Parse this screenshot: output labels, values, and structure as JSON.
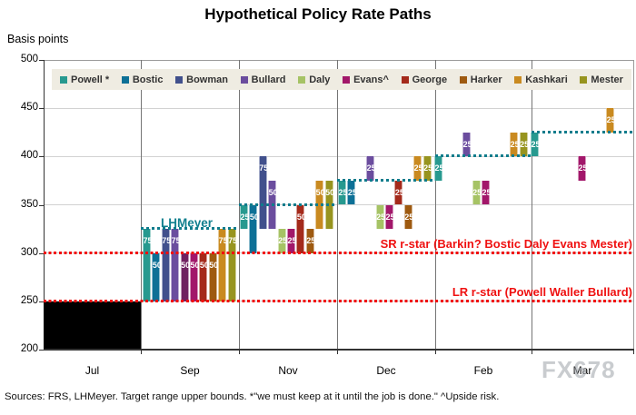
{
  "title": "Hypothetical Policy Rate Paths",
  "watermark": "FX678",
  "footer": "Sources: FRS, LHMeyer.  Target range upper bounds.  *\"we must keep at it until the job is done.\" ^Upside risk.",
  "y_axis": {
    "label": "Basis points",
    "ticks": [
      500,
      450,
      400,
      350,
      300,
      250,
      200
    ]
  },
  "chart_data": {
    "type": "bar",
    "subtype": "cumulative-rate-path-waterfall",
    "title": "Hypothetical Policy Rate Paths",
    "ylabel": "Basis points",
    "ylim": [
      200,
      500
    ],
    "grid": "both",
    "legend_position": "top-inside",
    "categories": [
      "Jul",
      "Sep",
      "Nov",
      "Dec",
      "Feb",
      "Mar"
    ],
    "members": [
      {
        "name": "Powell",
        "legend_label": "Powell *",
        "color": "#27998f"
      },
      {
        "name": "Bostic",
        "legend_label": "Bostic",
        "color": "#0d7096"
      },
      {
        "name": "Bowman",
        "legend_label": "Bowman",
        "color": "#41508c"
      },
      {
        "name": "Bullard",
        "legend_label": "Bullard",
        "color": "#6b4d9e"
      },
      {
        "name": "Daly",
        "legend_label": "Daly",
        "color": "#a6c365"
      },
      {
        "name": "Evans",
        "legend_label": "Evans^",
        "color": "#a2176a"
      },
      {
        "name": "George",
        "legend_label": "George",
        "color": "#a42a1b"
      },
      {
        "name": "Harker",
        "legend_label": "Harker",
        "color": "#9e5a10"
      },
      {
        "name": "Kashkari",
        "legend_label": "Kashkari",
        "color": "#c98a20"
      },
      {
        "name": "Mester",
        "legend_label": "Mester",
        "color": "#97941f"
      }
    ],
    "jul_range_box": {
      "month": "Jul",
      "from": 200,
      "to": 250,
      "color": "#000000"
    },
    "bars": [
      {
        "month": "Sep",
        "member": "Powell",
        "from": 250,
        "to": 325,
        "label": "75"
      },
      {
        "month": "Sep",
        "member": "Bostic",
        "from": 250,
        "to": 300,
        "label": "50"
      },
      {
        "month": "Sep",
        "member": "Bowman",
        "from": 250,
        "to": 325,
        "label": "75"
      },
      {
        "month": "Sep",
        "member": "Bullard",
        "from": 250,
        "to": 325,
        "label": "75"
      },
      {
        "month": "Sep",
        "member": "Daly",
        "from": 250,
        "to": 300,
        "label": "50",
        "color": "#6f2160"
      },
      {
        "month": "Sep",
        "member": "Evans",
        "from": 250,
        "to": 300,
        "label": "50"
      },
      {
        "month": "Sep",
        "member": "George",
        "from": 250,
        "to": 300,
        "label": "50"
      },
      {
        "month": "Sep",
        "member": "Harker",
        "from": 250,
        "to": 300,
        "label": "50"
      },
      {
        "month": "Sep",
        "member": "Kashkari",
        "from": 250,
        "to": 325,
        "label": "75"
      },
      {
        "month": "Sep",
        "member": "Mester",
        "from": 250,
        "to": 325,
        "label": "75"
      },
      {
        "month": "Nov",
        "member": "Powell",
        "from": 325,
        "to": 350,
        "label": "25"
      },
      {
        "month": "Nov",
        "member": "Bostic",
        "from": 300,
        "to": 350,
        "label": "50"
      },
      {
        "month": "Nov",
        "member": "Bowman",
        "from": 325,
        "to": 400,
        "label": "75"
      },
      {
        "month": "Nov",
        "member": "Bullard",
        "from": 325,
        "to": 375,
        "label": "50"
      },
      {
        "month": "Nov",
        "member": "Daly",
        "from": 300,
        "to": 325,
        "label": "25"
      },
      {
        "month": "Nov",
        "member": "Evans",
        "from": 300,
        "to": 325,
        "label": "25"
      },
      {
        "month": "Nov",
        "member": "George",
        "from": 300,
        "to": 350,
        "label": "50"
      },
      {
        "month": "Nov",
        "member": "Harker",
        "from": 300,
        "to": 325,
        "label": "25"
      },
      {
        "month": "Nov",
        "member": "Kashkari",
        "from": 325,
        "to": 375,
        "label": "50"
      },
      {
        "month": "Nov",
        "member": "Mester",
        "from": 325,
        "to": 375,
        "label": "50"
      },
      {
        "month": "Dec",
        "member": "Powell",
        "from": 350,
        "to": 375,
        "label": "25"
      },
      {
        "month": "Dec",
        "member": "Bostic",
        "from": 350,
        "to": 375,
        "label": "25"
      },
      {
        "month": "Dec",
        "member": "Bullard",
        "from": 375,
        "to": 400,
        "label": "25"
      },
      {
        "month": "Dec",
        "member": "Daly",
        "from": 325,
        "to": 350,
        "label": "25"
      },
      {
        "month": "Dec",
        "member": "Evans",
        "from": 325,
        "to": 350,
        "label": "25"
      },
      {
        "month": "Dec",
        "member": "George",
        "from": 350,
        "to": 375,
        "label": "25"
      },
      {
        "month": "Dec",
        "member": "Harker",
        "from": 325,
        "to": 350,
        "label": "25"
      },
      {
        "month": "Dec",
        "member": "Kashkari",
        "from": 375,
        "to": 400,
        "label": "25"
      },
      {
        "month": "Dec",
        "member": "Mester",
        "from": 375,
        "to": 400,
        "label": "25"
      },
      {
        "month": "Feb",
        "member": "Powell",
        "from": 375,
        "to": 400,
        "label": "25"
      },
      {
        "month": "Feb",
        "member": "Bullard",
        "from": 400,
        "to": 425,
        "label": "25"
      },
      {
        "month": "Feb",
        "member": "Daly",
        "from": 350,
        "to": 375,
        "label": "25"
      },
      {
        "month": "Feb",
        "member": "Evans",
        "from": 350,
        "to": 375,
        "label": "25"
      },
      {
        "month": "Feb",
        "member": "Kashkari",
        "from": 400,
        "to": 425,
        "label": "25"
      },
      {
        "month": "Feb",
        "member": "Mester",
        "from": 400,
        "to": 425,
        "label": "25"
      },
      {
        "month": "Mar",
        "member": "Powell",
        "from": 400,
        "to": 425,
        "label": "25"
      },
      {
        "month": "Mar",
        "member": "Evans",
        "from": 375,
        "to": 400,
        "label": "25"
      },
      {
        "month": "Mar",
        "member": "Kashkari",
        "from": 425,
        "to": 450,
        "label": "25"
      }
    ],
    "lhmeyer_path": {
      "label": "LHMeyer",
      "color": "#0f7c8c",
      "levels": [
        {
          "month": "Sep",
          "level": 325
        },
        {
          "month": "Nov",
          "level": 350
        },
        {
          "month": "Dec",
          "level": 375
        },
        {
          "month": "Feb",
          "level": 400
        },
        {
          "month": "Mar",
          "level": 425
        }
      ]
    },
    "reference_lines": [
      {
        "level": 300,
        "label": "SR r-star (Barkin? Bostic Daly Evans Mester)",
        "color": "#ef1111"
      },
      {
        "level": 250,
        "label": "LR r-star (Powell Waller Bullard)",
        "color": "#ef1111"
      }
    ]
  }
}
